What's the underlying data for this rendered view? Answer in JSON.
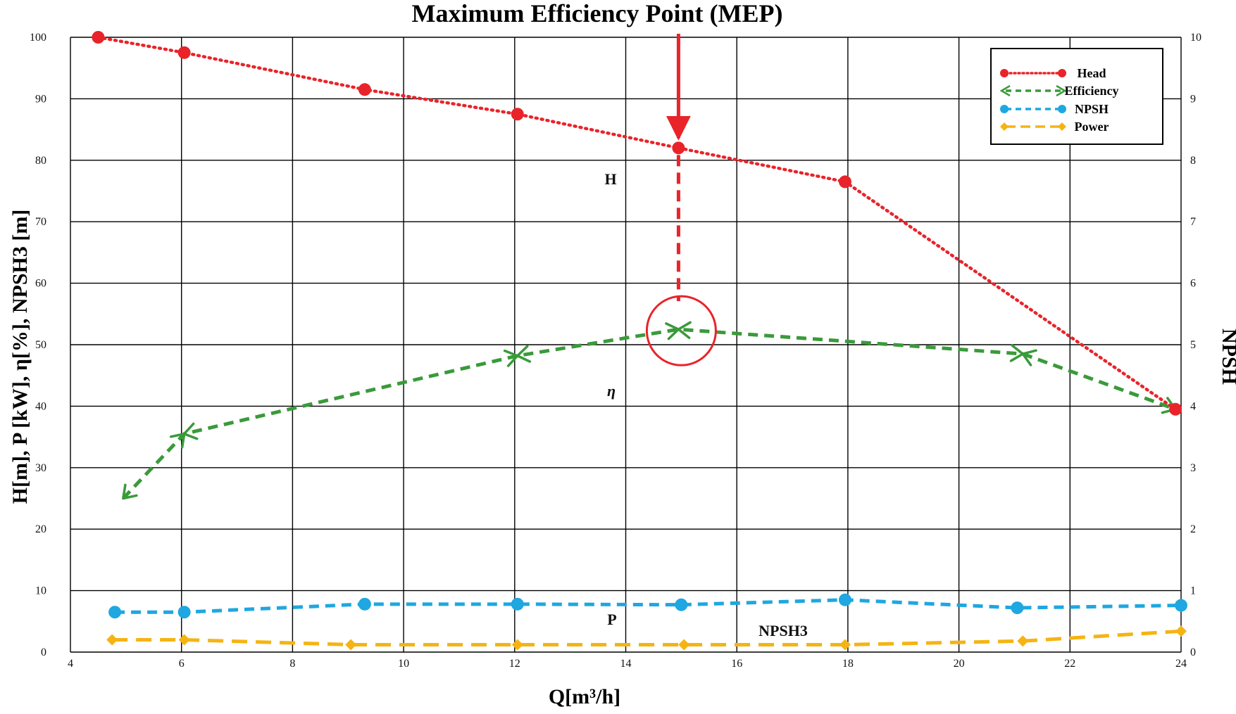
{
  "chart_data": {
    "type": "line",
    "title": "Maximum Efficiency Point (MEP)",
    "xlabel": "Q[m³/h]",
    "ylabel": "H[m], P [kW], η[%], NPSH3 [m]",
    "y2label": "NPSH",
    "xlim": [
      4,
      24
    ],
    "ylim": [
      0,
      100
    ],
    "y2lim": [
      0,
      10
    ],
    "grid": true,
    "legend_position": "top-right",
    "x_ticks": [
      "4",
      "6",
      "8",
      "10",
      "12",
      "14",
      "16",
      "18",
      "20",
      "22",
      "24"
    ],
    "y_ticks": [
      "0",
      "10",
      "20",
      "30",
      "40",
      "50",
      "60",
      "70",
      "80",
      "90",
      "100"
    ],
    "y2_ticks": [
      "0",
      "1",
      "2",
      "3",
      "4",
      "5",
      "6",
      "7",
      "8",
      "9",
      "10"
    ],
    "series": [
      {
        "name": "Head",
        "color": "#e8242a",
        "style": "dotted",
        "marker": "circle",
        "x": [
          4.5,
          6.05,
          9.3,
          12.05,
          14.95,
          17.95,
          23.9
        ],
        "y": [
          100,
          97.5,
          91.5,
          87.5,
          82,
          76.5,
          39.5
        ]
      },
      {
        "name": "Efficiency",
        "color": "#3a9a3a",
        "style": "dashed",
        "marker": "arrow",
        "x": [
          4.95,
          6.05,
          12.05,
          14.95,
          21.15,
          23.9
        ],
        "y": [
          25,
          35.5,
          48.2,
          52.5,
          48.5,
          39.5
        ]
      },
      {
        "name": "NPSH",
        "color": "#1ea7e1",
        "style": "dashed",
        "marker": "circle",
        "x": [
          4.8,
          6.05,
          9.3,
          12.05,
          15.0,
          17.95,
          21.05,
          24.0
        ],
        "y": [
          0.65,
          0.65,
          0.78,
          0.78,
          0.77,
          0.85,
          0.72,
          0.76
        ]
      },
      {
        "name": "Power",
        "color": "#f5b414",
        "style": "long-dash",
        "marker": "diamond",
        "x": [
          4.75,
          6.05,
          9.05,
          12.05,
          15.05,
          17.95,
          21.15,
          24.0
        ],
        "y": [
          2.0,
          2.0,
          1.2,
          1.2,
          1.2,
          1.2,
          1.8,
          3.4
        ]
      }
    ],
    "annotations": {
      "h_label": "H",
      "eta_label": "η",
      "p_label": "P",
      "npsh3_label": "NPSH3"
    },
    "mep": {
      "x": 14.95,
      "y": 52.5
    }
  }
}
